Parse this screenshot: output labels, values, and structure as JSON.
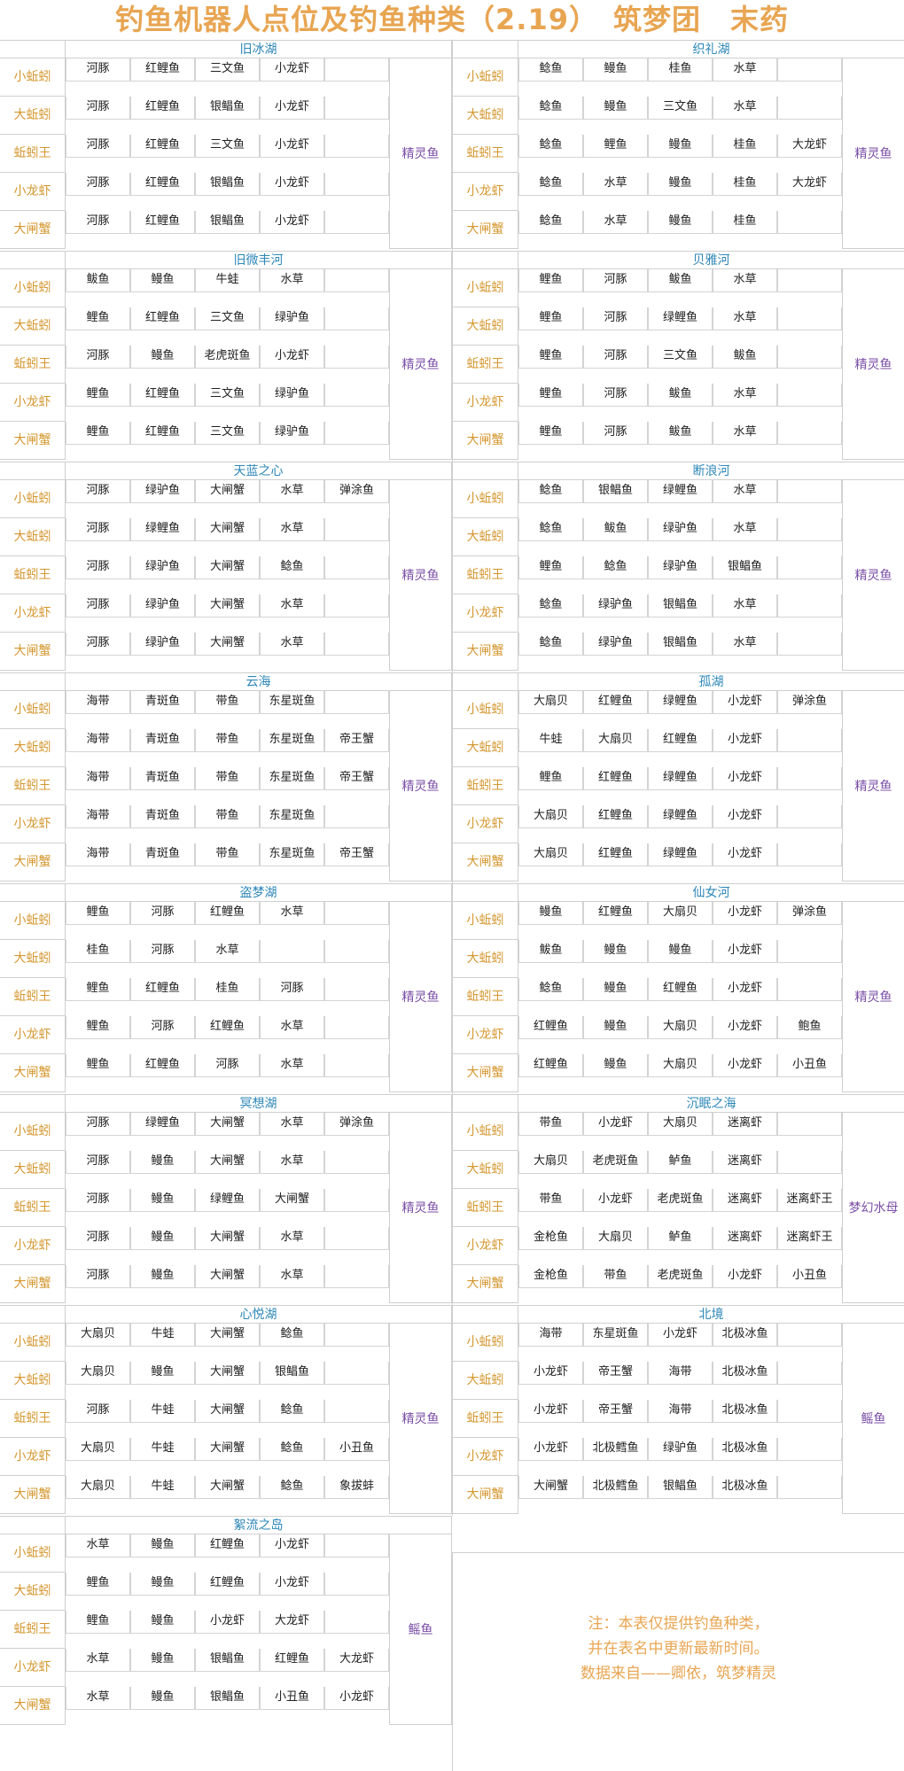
{
  "title": "钓鱼机器人点位及钓鱼种类（2.19）　筑梦团　末药",
  "bait_labels": [
    "小蚯蚓",
    "大蚯蚓",
    "蚯蚓王",
    "小龙虾",
    "大闸蟹"
  ],
  "sections": [
    {
      "name": "旧冰湖",
      "special": "精灵鱼",
      "rows": [
        [
          "河豚",
          "红鲤鱼",
          "三文鱼",
          "小龙虾"
        ],
        [
          "河豚",
          "红鲤鱼",
          "银鲳鱼",
          "小龙虾"
        ],
        [
          "河豚",
          "红鲤鱼",
          "三文鱼",
          "小龙虾"
        ],
        [
          "河豚",
          "红鲤鱼",
          "银鲳鱼",
          "小龙虾"
        ],
        [
          "河豚",
          "红鲤鱼",
          "银鲳鱼",
          "小龙虾"
        ]
      ]
    },
    {
      "name": "织礼湖",
      "special": "精灵鱼",
      "rows": [
        [
          "鲶鱼",
          "鳗鱼",
          "桂鱼",
          "水草"
        ],
        [
          "鲶鱼",
          "鳗鱼",
          "三文鱼",
          "水草"
        ],
        [
          "鲶鱼",
          "鲤鱼",
          "鳗鱼",
          "桂鱼",
          "大龙虾"
        ],
        [
          "鲶鱼",
          "水草",
          "鳗鱼",
          "桂鱼",
          "大龙虾"
        ],
        [
          "鲶鱼",
          "水草",
          "鳗鱼",
          "桂鱼"
        ]
      ]
    },
    {
      "name": "旧微丰河",
      "special": "精灵鱼",
      "rows": [
        [
          "鲅鱼",
          "鳗鱼",
          "牛蛙",
          "水草"
        ],
        [
          "鲤鱼",
          "红鲤鱼",
          "三文鱼",
          "绿驴鱼"
        ],
        [
          "河豚",
          "鳗鱼",
          "老虎斑鱼",
          "小龙虾"
        ],
        [
          "鲤鱼",
          "红鲤鱼",
          "三文鱼",
          "绿驴鱼"
        ],
        [
          "鲤鱼",
          "红鲤鱼",
          "三文鱼",
          "绿驴鱼"
        ]
      ]
    },
    {
      "name": "贝雅河",
      "special": "精灵鱼",
      "rows": [
        [
          "鲤鱼",
          "河豚",
          "鲅鱼",
          "水草"
        ],
        [
          "鲤鱼",
          "河豚",
          "绿鲤鱼",
          "水草"
        ],
        [
          "鲤鱼",
          "河豚",
          "三文鱼",
          "鲅鱼"
        ],
        [
          "鲤鱼",
          "河豚",
          "鲅鱼",
          "水草"
        ],
        [
          "鲤鱼",
          "河豚",
          "鲅鱼",
          "水草"
        ]
      ]
    },
    {
      "name": "天蓝之心",
      "special": "精灵鱼",
      "rows": [
        [
          "河豚",
          "绿驴鱼",
          "大闸蟹",
          "水草",
          "弹涂鱼"
        ],
        [
          "河豚",
          "绿鲤鱼",
          "大闸蟹",
          "水草"
        ],
        [
          "河豚",
          "绿驴鱼",
          "大闸蟹",
          "鲶鱼"
        ],
        [
          "河豚",
          "绿驴鱼",
          "大闸蟹",
          "水草"
        ],
        [
          "河豚",
          "绿驴鱼",
          "大闸蟹",
          "水草"
        ]
      ]
    },
    {
      "name": "断浪河",
      "special": "精灵鱼",
      "rows": [
        [
          "鲶鱼",
          "银鲳鱼",
          "绿鲤鱼",
          "水草"
        ],
        [
          "鲶鱼",
          "鲅鱼",
          "绿驴鱼",
          "水草"
        ],
        [
          "鲤鱼",
          "鲶鱼",
          "绿驴鱼",
          "银鲳鱼"
        ],
        [
          "鲶鱼",
          "绿驴鱼",
          "银鲳鱼",
          "水草"
        ],
        [
          "鲶鱼",
          "绿驴鱼",
          "银鲳鱼",
          "水草"
        ]
      ]
    },
    {
      "name": "云海",
      "special": "精灵鱼",
      "rows": [
        [
          "海带",
          "青斑鱼",
          "带鱼",
          "东星斑鱼"
        ],
        [
          "海带",
          "青斑鱼",
          "带鱼",
          "东星斑鱼",
          "帝王蟹"
        ],
        [
          "海带",
          "青斑鱼",
          "带鱼",
          "东星斑鱼",
          "帝王蟹"
        ],
        [
          "海带",
          "青斑鱼",
          "带鱼",
          "东星斑鱼"
        ],
        [
          "海带",
          "青斑鱼",
          "带鱼",
          "东星斑鱼",
          "帝王蟹"
        ]
      ]
    },
    {
      "name": "孤湖",
      "special": "精灵鱼",
      "rows": [
        [
          "大扇贝",
          "红鲤鱼",
          "绿鲤鱼",
          "小龙虾",
          "弹涂鱼"
        ],
        [
          "牛蛙",
          "大扇贝",
          "红鲤鱼",
          "小龙虾"
        ],
        [
          "鲤鱼",
          "红鲤鱼",
          "绿鲤鱼",
          "小龙虾"
        ],
        [
          "大扇贝",
          "红鲤鱼",
          "绿鲤鱼",
          "小龙虾"
        ],
        [
          "大扇贝",
          "红鲤鱼",
          "绿鲤鱼",
          "小龙虾"
        ]
      ]
    },
    {
      "name": "盗梦湖",
      "special": "精灵鱼",
      "rows": [
        [
          "鲤鱼",
          "河豚",
          "红鲤鱼",
          "水草"
        ],
        [
          "桂鱼",
          "河豚",
          "水草"
        ],
        [
          "鲤鱼",
          "红鲤鱼",
          "桂鱼",
          "河豚"
        ],
        [
          "鲤鱼",
          "河豚",
          "红鲤鱼",
          "水草"
        ],
        [
          "鲤鱼",
          "红鲤鱼",
          "河豚",
          "水草"
        ]
      ]
    },
    {
      "name": "仙女河",
      "special": "精灵鱼",
      "rows": [
        [
          "鳗鱼",
          "红鲤鱼",
          "大扇贝",
          "小龙虾",
          "弹涂鱼"
        ],
        [
          "鲅鱼",
          "鳗鱼",
          "鳗鱼",
          "小龙虾"
        ],
        [
          "鲶鱼",
          "鳗鱼",
          "红鲤鱼",
          "小龙虾"
        ],
        [
          "红鲤鱼",
          "鳗鱼",
          "大扇贝",
          "小龙虾",
          "鲍鱼"
        ],
        [
          "红鲤鱼",
          "鳗鱼",
          "大扇贝",
          "小龙虾",
          "小丑鱼"
        ]
      ]
    },
    {
      "name": "冥想湖",
      "special": "精灵鱼",
      "rows": [
        [
          "河豚",
          "绿鲤鱼",
          "大闸蟹",
          "水草",
          "弹涂鱼"
        ],
        [
          "河豚",
          "鳗鱼",
          "大闸蟹",
          "水草"
        ],
        [
          "河豚",
          "鳗鱼",
          "绿鲤鱼",
          "大闸蟹"
        ],
        [
          "河豚",
          "鳗鱼",
          "大闸蟹",
          "水草"
        ],
        [
          "河豚",
          "鳗鱼",
          "大闸蟹",
          "水草"
        ]
      ]
    },
    {
      "name": "沉眠之海",
      "special": "梦幻水母",
      "rows": [
        [
          "带鱼",
          "小龙虾",
          "大扇贝",
          "迷离虾"
        ],
        [
          "大扇贝",
          "老虎斑鱼",
          "鲈鱼",
          "迷离虾"
        ],
        [
          "带鱼",
          "小龙虾",
          "老虎斑鱼",
          "迷离虾",
          "迷离虾王"
        ],
        [
          "金枪鱼",
          "大扇贝",
          "鲈鱼",
          "迷离虾",
          "迷离虾王"
        ],
        [
          "金枪鱼",
          "带鱼",
          "老虎斑鱼",
          "小龙虾",
          "小丑鱼"
        ]
      ]
    },
    {
      "name": "心悦湖",
      "special": "精灵鱼",
      "rows": [
        [
          "大扇贝",
          "牛蛙",
          "大闸蟹",
          "鲶鱼"
        ],
        [
          "大扇贝",
          "鳗鱼",
          "大闸蟹",
          "银鲳鱼"
        ],
        [
          "河豚",
          "牛蛙",
          "大闸蟹",
          "鲶鱼"
        ],
        [
          "大扇贝",
          "牛蛙",
          "大闸蟹",
          "鲶鱼",
          "小丑鱼"
        ],
        [
          "大扇贝",
          "牛蛙",
          "大闸蟹",
          "鲶鱼",
          "象拔蚌"
        ]
      ]
    },
    {
      "name": "北境",
      "special": "鳐鱼",
      "rows": [
        [
          "海带",
          "东星斑鱼",
          "小龙虾",
          "北极冰鱼"
        ],
        [
          "小龙虾",
          "帝王蟹",
          "海带",
          "北极冰鱼"
        ],
        [
          "小龙虾",
          "帝王蟹",
          "海带",
          "北极冰鱼"
        ],
        [
          "小龙虾",
          "北极鳕鱼",
          "绿驴鱼",
          "北极冰鱼"
        ],
        [
          "大闸蟹",
          "北极鳕鱼",
          "银鲳鱼",
          "北极冰鱼"
        ]
      ]
    },
    {
      "name": "絮流之岛",
      "special": "鳐鱼",
      "rows": [
        [
          "水草",
          "鳗鱼",
          "红鲤鱼",
          "小龙虾"
        ],
        [
          "鲤鱼",
          "鳗鱼",
          "红鲤鱼",
          "小龙虾"
        ],
        [
          "鲤鱼",
          "鳗鱼",
          "小龙虾",
          "大龙虾"
        ],
        [
          "水草",
          "鳗鱼",
          "银鲳鱼",
          "红鲤鱼",
          "大龙虾"
        ],
        [
          "水草",
          "鳗鱼",
          "银鲳鱼",
          "小丑鱼",
          "小龙虾"
        ]
      ]
    }
  ],
  "note": {
    "line1": "注：本表仅提供钓鱼种类，",
    "line2": "并在表名中更新最新时间。",
    "line3": "数据来自——卿依，筑梦精灵"
  },
  "colors": {
    "title": "#e8a552",
    "section_header": "#2e87b8",
    "bait_label": "#d4972f",
    "special_fish": "#7b4fa6"
  }
}
